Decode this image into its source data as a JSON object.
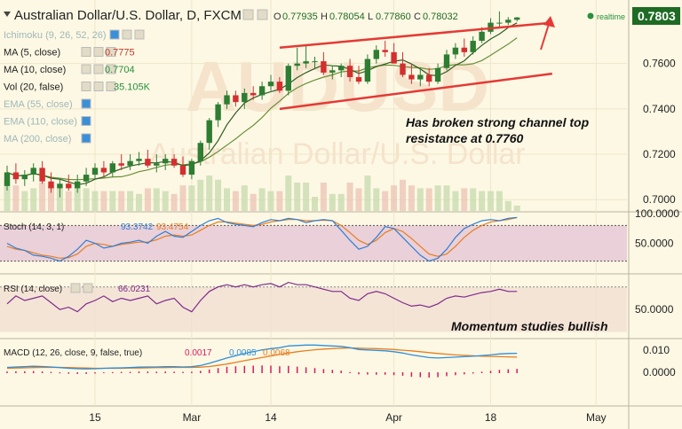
{
  "header": {
    "symbol": "Australian Dollar/U.S. Dollar, D, FXCM",
    "o_label": "O",
    "o_value": "0.77935",
    "h_label": "H",
    "h_value": "0.78054",
    "l_label": "L",
    "l_value": "0.77860",
    "c_label": "C",
    "c_value": "0.78032",
    "realtime": "realtime",
    "last_price": "0.7803"
  },
  "watermark": {
    "big": "AUDUSD",
    "small": "Australian Dollar/U.S. Dollar"
  },
  "legend": [
    {
      "name": "ichimoku",
      "label": "Ichimoku (9, 26, 52, 26)",
      "value": "",
      "faded": true
    },
    {
      "name": "ma5",
      "label": "MA (5, close)",
      "value": "0.7775",
      "color": "#c0392b",
      "faded": false
    },
    {
      "name": "ma10",
      "label": "MA (10, close)",
      "value": "0.7704",
      "color": "#27913b",
      "faded": false
    },
    {
      "name": "vol",
      "label": "Vol (20, false)",
      "value": "35.105K",
      "color": "#27913b",
      "faded": false
    },
    {
      "name": "ema55",
      "label": "EMA (55, close)",
      "value": "",
      "faded": true
    },
    {
      "name": "ema110",
      "label": "EMA (110, close)",
      "value": "",
      "faded": true
    },
    {
      "name": "ema200",
      "label": "MA (200, close)",
      "value": "",
      "faded": true
    }
  ],
  "annotations": {
    "channel_note_1": "Has broken strong channel top",
    "channel_note_2": "resistance at 0.7760",
    "momentum_note": "Momentum studies bullish"
  },
  "panes": {
    "stoch": {
      "label": "Stoch (14, 3, 1)",
      "k_value": "93.3742",
      "d_value": "93.4754",
      "k_color": "#2f7fd8",
      "d_color": "#e67e22"
    },
    "rsi": {
      "label": "RSI (14, close)",
      "value": "66.0231",
      "color": "#7d2b8b"
    },
    "macd": {
      "label": "MACD (12, 26, close, 9, false, true)",
      "hist_value": "0.0017",
      "macd_value": "0.0085",
      "signal_value": "0.0068",
      "hist_color": "#d81b60",
      "macd_color": "#2f8fd8",
      "signal_color": "#e67e22"
    }
  },
  "colors": {
    "background": "#fdf8e4",
    "up_candle": "#2e7d32",
    "down_candle": "#d32f2f",
    "channel": "#e53935",
    "price_badge": "#1e6b24",
    "stoch_band": "#ead0d8"
  },
  "chart_data": [
    {
      "type": "candlestick",
      "title": "Australian Dollar/U.S. Dollar, D, FXCM",
      "x": [
        "Feb 1",
        "Feb 2",
        "Feb 3",
        "Feb 4",
        "Feb 5",
        "Feb 8",
        "Feb 9",
        "Feb 10",
        "Feb 11",
        "Feb 12",
        "Feb 15",
        "Feb 16",
        "Feb 17",
        "Feb 18",
        "Feb 19",
        "Feb 22",
        "Feb 23",
        "Feb 24",
        "Feb 25",
        "Feb 26",
        "Feb 29",
        "Mar 1",
        "Mar 2",
        "Mar 3",
        "Mar 4",
        "Mar 7",
        "Mar 8",
        "Mar 9",
        "Mar 10",
        "Mar 11",
        "Mar 14",
        "Mar 15",
        "Mar 16",
        "Mar 17",
        "Mar 18",
        "Mar 21",
        "Mar 22",
        "Mar 23",
        "Mar 24",
        "Mar 25",
        "Mar 28",
        "Mar 29",
        "Mar 30",
        "Mar 31",
        "Apr 1",
        "Apr 4",
        "Apr 5",
        "Apr 6",
        "Apr 7",
        "Apr 8",
        "Apr 11",
        "Apr 12",
        "Apr 13",
        "Apr 14",
        "Apr 15",
        "Apr 18",
        "Apr 19",
        "Apr 20",
        "Apr 21"
      ],
      "open": [
        0.706,
        0.712,
        0.709,
        0.711,
        0.714,
        0.708,
        0.705,
        0.707,
        0.705,
        0.708,
        0.711,
        0.714,
        0.712,
        0.716,
        0.715,
        0.717,
        0.718,
        0.715,
        0.716,
        0.718,
        0.715,
        0.711,
        0.717,
        0.725,
        0.735,
        0.742,
        0.746,
        0.743,
        0.747,
        0.746,
        0.75,
        0.752,
        0.748,
        0.759,
        0.76,
        0.761,
        0.761,
        0.756,
        0.757,
        0.759,
        0.754,
        0.752,
        0.762,
        0.766,
        0.765,
        0.76,
        0.755,
        0.753,
        0.755,
        0.752,
        0.758,
        0.764,
        0.767,
        0.765,
        0.77,
        0.774,
        0.778,
        0.778,
        0.7793
      ],
      "high": [
        0.715,
        0.716,
        0.713,
        0.716,
        0.717,
        0.712,
        0.709,
        0.711,
        0.711,
        0.714,
        0.716,
        0.717,
        0.717,
        0.72,
        0.72,
        0.721,
        0.722,
        0.72,
        0.72,
        0.72,
        0.719,
        0.718,
        0.726,
        0.736,
        0.743,
        0.748,
        0.748,
        0.749,
        0.75,
        0.752,
        0.755,
        0.754,
        0.76,
        0.767,
        0.768,
        0.763,
        0.765,
        0.759,
        0.76,
        0.762,
        0.759,
        0.764,
        0.768,
        0.77,
        0.769,
        0.765,
        0.76,
        0.758,
        0.758,
        0.76,
        0.766,
        0.769,
        0.771,
        0.772,
        0.776,
        0.78,
        0.783,
        0.7805,
        0.7805
      ],
      "low": [
        0.704,
        0.707,
        0.706,
        0.708,
        0.707,
        0.703,
        0.701,
        0.704,
        0.703,
        0.706,
        0.709,
        0.71,
        0.71,
        0.713,
        0.713,
        0.715,
        0.714,
        0.712,
        0.713,
        0.714,
        0.71,
        0.709,
        0.715,
        0.722,
        0.732,
        0.74,
        0.741,
        0.74,
        0.744,
        0.744,
        0.748,
        0.747,
        0.746,
        0.757,
        0.758,
        0.758,
        0.755,
        0.753,
        0.754,
        0.752,
        0.751,
        0.751,
        0.76,
        0.763,
        0.76,
        0.754,
        0.751,
        0.75,
        0.75,
        0.751,
        0.757,
        0.762,
        0.763,
        0.764,
        0.769,
        0.773,
        0.776,
        0.777,
        0.7786
      ],
      "close": [
        0.712,
        0.709,
        0.711,
        0.714,
        0.708,
        0.705,
        0.707,
        0.705,
        0.708,
        0.711,
        0.714,
        0.712,
        0.716,
        0.715,
        0.717,
        0.718,
        0.715,
        0.716,
        0.718,
        0.715,
        0.711,
        0.717,
        0.725,
        0.735,
        0.742,
        0.746,
        0.743,
        0.747,
        0.746,
        0.75,
        0.752,
        0.748,
        0.759,
        0.76,
        0.761,
        0.761,
        0.756,
        0.757,
        0.759,
        0.754,
        0.752,
        0.762,
        0.766,
        0.765,
        0.76,
        0.755,
        0.753,
        0.755,
        0.752,
        0.758,
        0.764,
        0.767,
        0.765,
        0.77,
        0.774,
        0.778,
        0.778,
        0.7793,
        0.7803
      ],
      "ylim": [
        0.695,
        0.788
      ],
      "y_ticks": [
        "0.7000",
        "0.7200",
        "0.7400",
        "0.7600"
      ],
      "x_ticks": [
        {
          "label": "15",
          "x": "Feb 15"
        },
        {
          "label": "Mar",
          "x": "Mar 1"
        },
        {
          "label": "14",
          "x": "Mar 14"
        },
        {
          "label": "Apr",
          "x": "Apr 1"
        },
        {
          "label": "18",
          "x": "Apr 18"
        },
        {
          "label": "May",
          "x": "May 2"
        }
      ],
      "channel_top": [
        {
          "x": "Mar 15",
          "y": 0.767
        },
        {
          "x": "Apr 27",
          "y": 0.778
        }
      ],
      "channel_bottom": [
        {
          "x": "Mar 15",
          "y": 0.74
        },
        {
          "x": "Apr 27",
          "y": 0.7555
        }
      ]
    },
    {
      "type": "line",
      "title": "Stoch (14, 3, 1)",
      "series": [
        {
          "name": "%K",
          "values": [
            50,
            42,
            38,
            30,
            28,
            25,
            20,
            28,
            40,
            55,
            50,
            42,
            45,
            50,
            52,
            55,
            50,
            62,
            70,
            62,
            60,
            70,
            80,
            88,
            92,
            85,
            82,
            80,
            78,
            85,
            90,
            88,
            92,
            90,
            85,
            88,
            90,
            88,
            72,
            55,
            40,
            45,
            60,
            78,
            75,
            60,
            45,
            30,
            20,
            25,
            40,
            60,
            75,
            82,
            88,
            90,
            88,
            92,
            93.3742
          ]
        },
        {
          "name": "%D",
          "values": [
            45,
            40,
            38,
            34,
            30,
            28,
            25,
            26,
            32,
            45,
            50,
            48,
            45,
            48,
            50,
            52,
            52,
            56,
            62,
            64,
            62,
            64,
            72,
            80,
            86,
            86,
            84,
            82,
            80,
            82,
            86,
            88,
            90,
            90,
            88,
            88,
            89,
            88,
            80,
            68,
            55,
            48,
            55,
            68,
            75,
            70,
            58,
            45,
            32,
            28,
            32,
            45,
            60,
            72,
            80,
            86,
            88,
            90,
            93.4754
          ]
        }
      ],
      "ylim": [
        0,
        100
      ],
      "y_ticks": [
        "50.0000",
        "100.0000"
      ]
    },
    {
      "type": "line",
      "title": "RSI (14, close)",
      "series": [
        {
          "name": "RSI",
          "values": [
            55,
            62,
            58,
            60,
            62,
            56,
            50,
            52,
            48,
            55,
            58,
            62,
            57,
            60,
            58,
            60,
            62,
            55,
            58,
            60,
            52,
            48,
            58,
            66,
            70,
            72,
            70,
            72,
            70,
            72,
            73,
            70,
            74,
            72,
            72,
            70,
            68,
            66,
            66,
            60,
            58,
            64,
            66,
            64,
            60,
            56,
            53,
            54,
            52,
            55,
            60,
            62,
            61,
            63,
            65,
            66,
            68,
            66,
            66.0231
          ]
        }
      ],
      "y_ticks": [
        "50.0000"
      ]
    },
    {
      "type": "line",
      "title": "MACD (12, 26, close, 9, false, true)",
      "series": [
        {
          "name": "MACD",
          "values": [
            0.0022,
            0.0024,
            0.0025,
            0.0027,
            0.0026,
            0.0024,
            0.0021,
            0.0018,
            0.0016,
            0.0015,
            0.0016,
            0.0018,
            0.0019,
            0.002,
            0.0021,
            0.0023,
            0.0024,
            0.0024,
            0.0025,
            0.0025,
            0.0024,
            0.0025,
            0.003,
            0.004,
            0.0052,
            0.0064,
            0.0074,
            0.0084,
            0.0092,
            0.01,
            0.0106,
            0.011,
            0.0118,
            0.012,
            0.0122,
            0.0122,
            0.012,
            0.0118,
            0.0116,
            0.011,
            0.0102,
            0.01,
            0.0098,
            0.0096,
            0.0092,
            0.0086,
            0.0078,
            0.0072,
            0.0066,
            0.0064,
            0.0066,
            0.0068,
            0.007,
            0.0072,
            0.0075,
            0.0078,
            0.0082,
            0.0084,
            0.0085
          ]
        },
        {
          "name": "Signal",
          "values": [
            0.0018,
            0.0019,
            0.002,
            0.0021,
            0.0022,
            0.0022,
            0.0022,
            0.0021,
            0.002,
            0.0019,
            0.0018,
            0.0018,
            0.0018,
            0.0018,
            0.0019,
            0.0019,
            0.002,
            0.0021,
            0.0021,
            0.0022,
            0.0022,
            0.0022,
            0.0023,
            0.0026,
            0.0031,
            0.0037,
            0.0044,
            0.0052,
            0.0059,
            0.0066,
            0.0073,
            0.008,
            0.0086,
            0.0092,
            0.0097,
            0.0101,
            0.0104,
            0.0106,
            0.0108,
            0.0109,
            0.0108,
            0.0107,
            0.0106,
            0.0104,
            0.0102,
            0.0099,
            0.0096,
            0.0092,
            0.0088,
            0.0084,
            0.0081,
            0.0078,
            0.0076,
            0.0074,
            0.0072,
            0.0071,
            0.007,
            0.0069,
            0.0068
          ]
        },
        {
          "name": "Histogram",
          "values": [
            0.0004,
            0.0005,
            0.0005,
            0.0006,
            0.0004,
            0.0002,
            -0.0001,
            -0.0003,
            -0.0004,
            -0.0004,
            -0.0002,
            0.0,
            0.0001,
            0.0002,
            0.0002,
            0.0004,
            0.0004,
            0.0003,
            0.0004,
            0.0003,
            0.0002,
            0.0003,
            0.0007,
            0.0014,
            0.0021,
            0.0027,
            0.003,
            0.0032,
            0.0033,
            0.0034,
            0.0033,
            0.003,
            0.0032,
            0.0028,
            0.0025,
            0.0021,
            0.0016,
            0.0012,
            0.0008,
            0.0001,
            -0.0006,
            -0.0007,
            -0.0008,
            -0.0008,
            -0.001,
            -0.0013,
            -0.0018,
            -0.002,
            -0.0022,
            -0.002,
            -0.0015,
            -0.001,
            -0.0006,
            -0.0002,
            0.0003,
            0.0007,
            0.0012,
            0.0015,
            0.0017
          ]
        }
      ],
      "y_ticks": [
        "0.010",
        "0.0000"
      ]
    }
  ]
}
